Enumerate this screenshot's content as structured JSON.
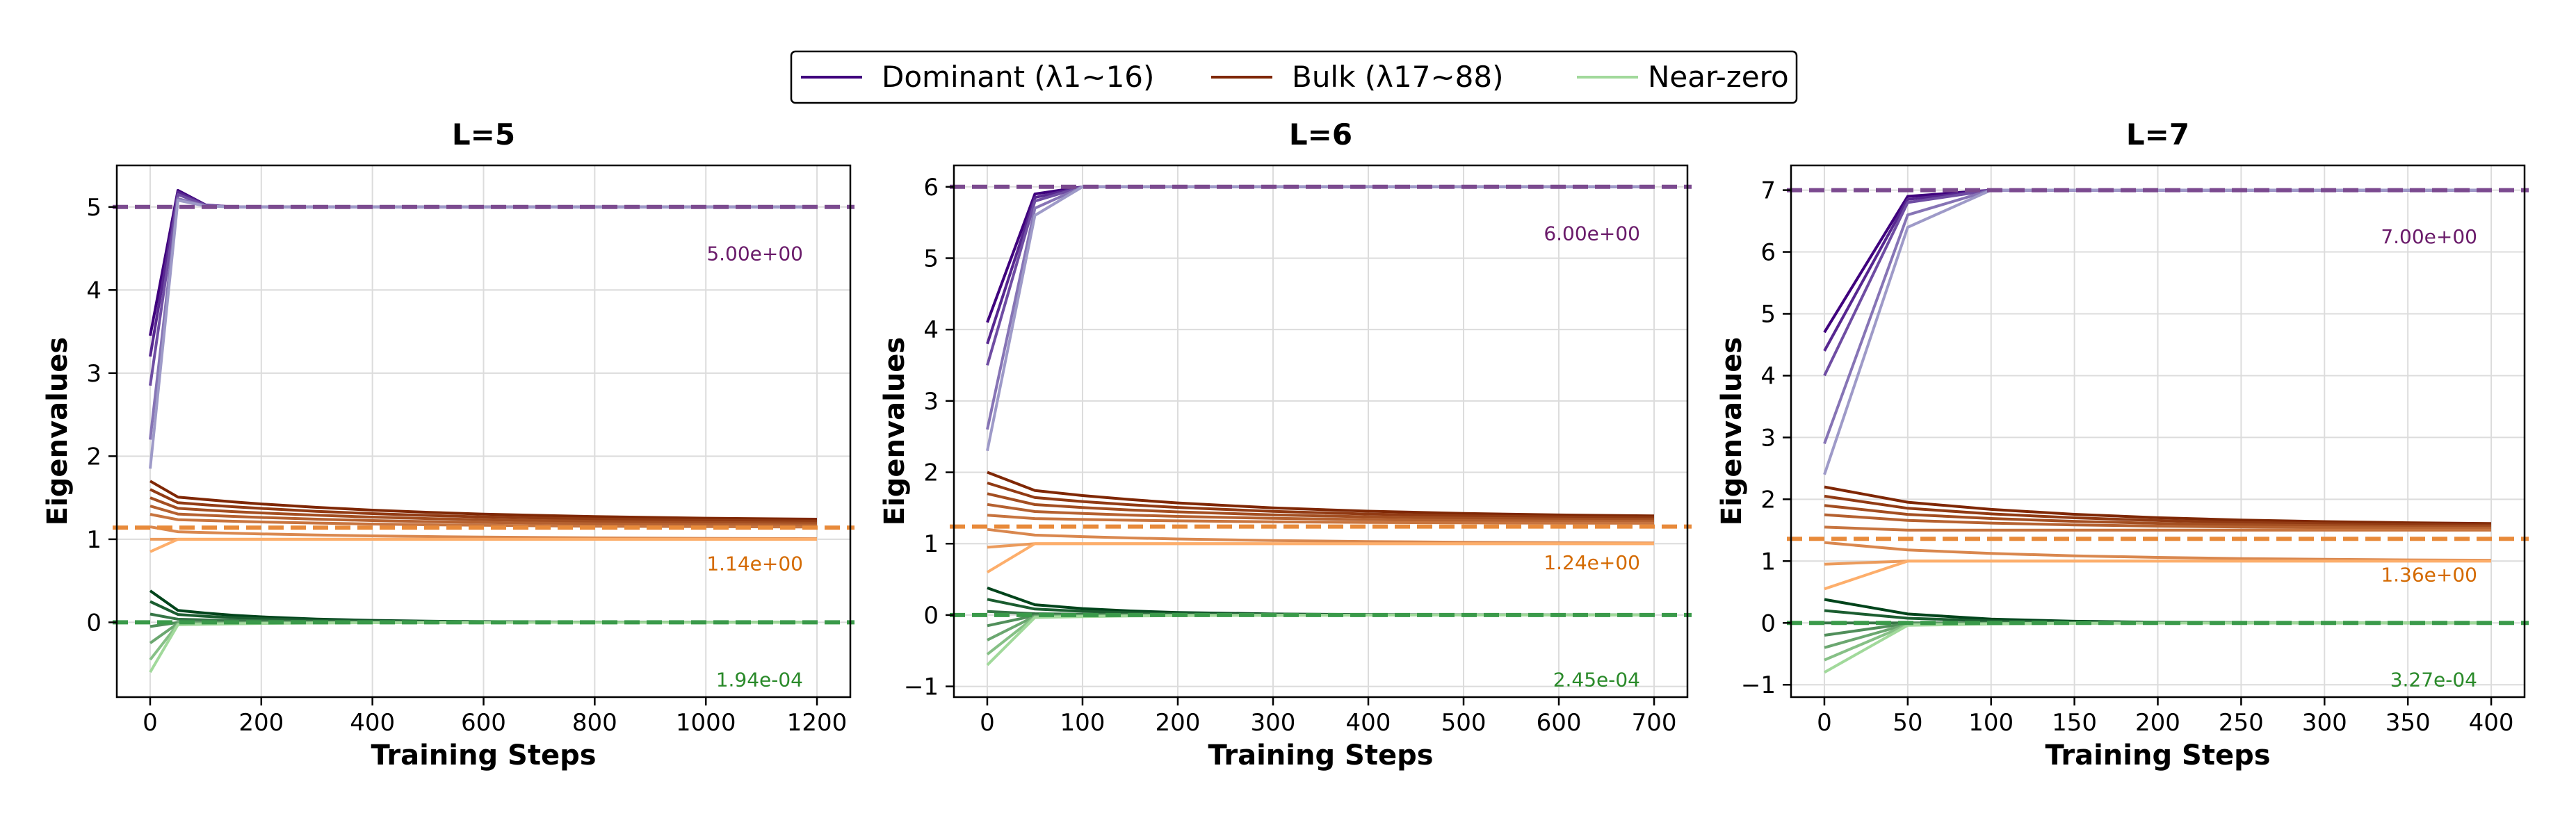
{
  "colors": {
    "dominant_dark": "#3f007d",
    "dominant_light": "#9e9ac8",
    "bulk_dark": "#7f2704",
    "bulk_light": "#fdae6b",
    "near_dark": "#00441b",
    "near_light": "#a1d99b",
    "dominant_ref": "#7b4a8f",
    "bulk_ref": "#e88a3a",
    "near_ref": "#3a9a4a",
    "dominant_ann": "#6a1b6a",
    "bulk_ann": "#d46a00",
    "near_ann": "#2a8a2a"
  },
  "legend": {
    "dominant": "Dominant (λ1~16)",
    "bulk": "Bulk (λ17~88)",
    "near": "Near-zero"
  },
  "chart_data": [
    {
      "type": "line",
      "title": "L=5",
      "xlabel": "Training Steps",
      "ylabel": "Eigenvalues",
      "xlim": [
        -60,
        1260
      ],
      "ylim": [
        -0.9,
        5.5
      ],
      "xticks": [
        0,
        200,
        400,
        600,
        800,
        1000,
        1200
      ],
      "yticks": [
        0,
        1,
        2,
        3,
        4,
        5
      ],
      "x": [
        0,
        50,
        100,
        150,
        200,
        300,
        400,
        500,
        600,
        800,
        1000,
        1200
      ],
      "reference_lines": {
        "dominant": 5.0,
        "bulk": 1.14,
        "near": 0.000194
      },
      "annotations": {
        "dominant": "5.00e+00",
        "bulk": "1.14e+00",
        "near": "1.94e-04"
      },
      "series": {
        "dominant": [
          {
            "start": 3.45,
            "peak": 5.2,
            "final": 5.0
          },
          {
            "start": 3.2,
            "peak": 5.18,
            "final": 5.0
          },
          {
            "start": 2.85,
            "peak": 5.15,
            "final": 5.0
          },
          {
            "start": 2.2,
            "peak": 5.1,
            "final": 5.0
          },
          {
            "start": 1.85,
            "peak": 5.08,
            "final": 5.0
          }
        ],
        "bulk": [
          {
            "start": 1.7,
            "final": 1.22
          },
          {
            "start": 1.6,
            "final": 1.2
          },
          {
            "start": 1.5,
            "final": 1.18
          },
          {
            "start": 1.4,
            "final": 1.16
          },
          {
            "start": 1.3,
            "final": 1.14
          },
          {
            "start": 1.15,
            "final": 1.0
          },
          {
            "start": 1.0,
            "final": 1.0
          },
          {
            "start": 0.85,
            "final": 1.0
          }
        ],
        "near": [
          {
            "start": 0.38,
            "final": 0.0
          },
          {
            "start": 0.25,
            "final": 0.0
          },
          {
            "start": 0.1,
            "final": 0.0
          },
          {
            "start": -0.05,
            "final": 0.0
          },
          {
            "start": -0.25,
            "final": 0.0
          },
          {
            "start": -0.45,
            "final": 0.0
          },
          {
            "start": -0.6,
            "final": 0.0
          }
        ]
      }
    },
    {
      "type": "line",
      "title": "L=6",
      "xlabel": "Training Steps",
      "ylabel": "Eigenvalues",
      "xlim": [
        -35,
        735
      ],
      "ylim": [
        -1.15,
        6.3
      ],
      "xticks": [
        0,
        100,
        200,
        300,
        400,
        500,
        600,
        700
      ],
      "yticks": [
        -1,
        0,
        1,
        2,
        3,
        4,
        5,
        6
      ],
      "x": [
        0,
        50,
        100,
        150,
        200,
        300,
        400,
        500,
        600,
        700
      ],
      "reference_lines": {
        "dominant": 6.0,
        "bulk": 1.24,
        "near": 0.000245
      },
      "annotations": {
        "dominant": "6.00e+00",
        "bulk": "1.24e+00",
        "near": "2.45e-04"
      },
      "series": {
        "dominant": [
          {
            "start": 4.1,
            "mid": 5.9,
            "final": 6.0
          },
          {
            "start": 3.8,
            "mid": 5.85,
            "final": 6.0
          },
          {
            "start": 3.5,
            "mid": 5.8,
            "final": 6.0
          },
          {
            "start": 2.6,
            "mid": 5.7,
            "final": 6.0
          },
          {
            "start": 2.3,
            "mid": 5.6,
            "final": 6.0
          }
        ],
        "bulk": [
          {
            "start": 2.0,
            "final": 1.36
          },
          {
            "start": 1.85,
            "final": 1.34
          },
          {
            "start": 1.7,
            "final": 1.32
          },
          {
            "start": 1.55,
            "final": 1.3
          },
          {
            "start": 1.4,
            "final": 1.28
          },
          {
            "start": 1.2,
            "final": 1.0
          },
          {
            "start": 0.95,
            "final": 1.0
          },
          {
            "start": 0.6,
            "final": 1.0
          }
        ],
        "near": [
          {
            "start": 0.38,
            "final": 0.0
          },
          {
            "start": 0.22,
            "final": 0.0
          },
          {
            "start": 0.05,
            "final": 0.0
          },
          {
            "start": -0.15,
            "final": 0.0
          },
          {
            "start": -0.35,
            "final": 0.0
          },
          {
            "start": -0.55,
            "final": 0.0
          },
          {
            "start": -0.7,
            "final": 0.0
          }
        ]
      }
    },
    {
      "type": "line",
      "title": "L=7",
      "xlabel": "Training Steps",
      "ylabel": "Eigenvalues",
      "xlim": [
        -20,
        420
      ],
      "ylim": [
        -1.2,
        7.4
      ],
      "xticks": [
        0,
        50,
        100,
        150,
        200,
        250,
        300,
        350,
        400
      ],
      "yticks": [
        -1,
        0,
        1,
        2,
        3,
        4,
        5,
        6,
        7
      ],
      "x": [
        0,
        50,
        100,
        150,
        200,
        250,
        300,
        350,
        400
      ],
      "reference_lines": {
        "dominant": 7.0,
        "bulk": 1.36,
        "near": 0.000327
      },
      "annotations": {
        "dominant": "7.00e+00",
        "bulk": "1.36e+00",
        "near": "3.27e-04"
      },
      "series": {
        "dominant": [
          {
            "start": 4.7,
            "mid": 6.9,
            "final": 7.0
          },
          {
            "start": 4.4,
            "mid": 6.85,
            "final": 7.0
          },
          {
            "start": 4.0,
            "mid": 6.8,
            "final": 7.0
          },
          {
            "start": 2.9,
            "mid": 6.6,
            "final": 7.0
          },
          {
            "start": 2.4,
            "mid": 6.4,
            "final": 7.0
          }
        ],
        "bulk": [
          {
            "start": 2.2,
            "final": 1.58
          },
          {
            "start": 2.05,
            "final": 1.56
          },
          {
            "start": 1.9,
            "final": 1.54
          },
          {
            "start": 1.75,
            "final": 1.52
          },
          {
            "start": 1.55,
            "final": 1.5
          },
          {
            "start": 1.3,
            "final": 1.0
          },
          {
            "start": 0.95,
            "final": 1.0
          },
          {
            "start": 0.55,
            "final": 1.0
          }
        ],
        "near": [
          {
            "start": 0.38,
            "final": 0.0
          },
          {
            "start": 0.2,
            "final": 0.0
          },
          {
            "start": 0.0,
            "final": 0.0
          },
          {
            "start": -0.2,
            "final": 0.0
          },
          {
            "start": -0.4,
            "final": 0.0
          },
          {
            "start": -0.6,
            "final": 0.0
          },
          {
            "start": -0.8,
            "final": 0.0
          }
        ]
      }
    }
  ]
}
